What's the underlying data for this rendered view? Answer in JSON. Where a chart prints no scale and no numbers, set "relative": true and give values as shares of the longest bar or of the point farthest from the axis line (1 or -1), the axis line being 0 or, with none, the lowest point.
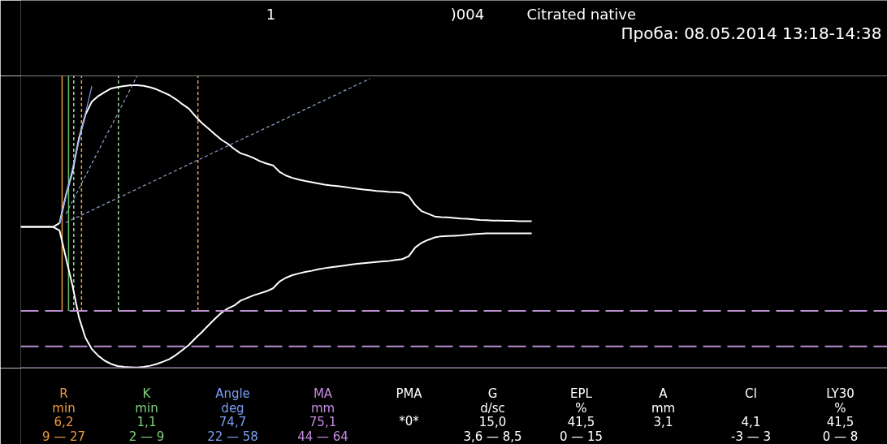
{
  "chart_data": {
    "type": "line",
    "relative": true,
    "line_style": "solid",
    "categories": [
      null,
      null,
      null,
      null,
      null,
      null,
      null,
      null,
      null,
      null,
      null,
      null,
      null,
      null,
      null,
      null,
      null,
      null,
      null,
      null,
      null,
      null,
      null,
      null,
      null,
      null,
      null,
      null,
      null,
      null,
      null,
      null,
      null,
      null,
      null,
      null,
      null,
      null,
      null,
      null,
      null,
      null,
      null,
      null,
      null,
      null,
      null,
      null,
      null,
      null,
      null,
      null,
      null,
      null,
      null,
      null,
      null,
      null,
      null,
      null,
      null,
      null,
      null,
      null,
      null,
      null,
      null,
      null,
      null,
      null,
      null,
      null,
      null,
      null,
      null,
      null,
      null,
      null,
      null,
      null,
      null,
      null,
      null,
      null,
      null,
      null,
      null,
      null,
      null,
      null,
      null,
      null,
      null,
      null,
      null,
      null,
      null,
      null,
      null,
      null,
      null,
      null,
      null,
      null,
      null,
      null,
      null,
      null,
      null,
      null,
      null,
      null,
      null,
      null,
      null,
      null,
      null,
      null,
      null,
      null,
      null,
      null,
      null,
      null,
      null,
      null,
      null,
      null,
      null,
      null,
      null,
      null,
      null,
      null,
      null
    ],
    "series": [
      {
        "color": "#ffffff",
        "values": [
          0.483,
          0.483,
          0.483,
          0.483,
          0.483,
          0.483,
          0.496,
          0.592,
          0.673,
          0.785,
          0.867,
          0.912,
          0.931,
          0.945,
          0.957,
          0.962,
          0.965,
          0.968,
          0.968,
          0.966,
          0.961,
          0.954,
          0.944,
          0.934,
          0.92,
          0.903,
          0.888,
          0.862,
          0.839,
          0.82,
          0.801,
          0.782,
          0.768,
          0.75,
          0.735,
          0.728,
          0.719,
          0.708,
          0.7,
          0.694,
          0.672,
          0.659,
          0.651,
          0.645,
          0.64,
          0.636,
          0.632,
          0.628,
          0.625,
          0.623,
          0.62,
          0.617,
          0.614,
          0.611,
          0.609,
          0.606,
          0.605,
          0.603,
          0.602,
          0.6,
          0.589,
          0.558,
          0.537,
          0.528,
          0.519,
          0.517,
          0.516,
          0.514,
          0.512,
          0.511,
          0.509,
          0.507,
          0.506,
          0.505,
          0.505,
          0.504,
          0.504,
          0.503,
          0.503,
          0.503,
          null,
          null,
          null,
          null,
          null,
          null,
          null,
          null,
          null,
          null,
          null,
          null,
          null,
          null,
          null,
          null,
          null,
          null,
          null,
          null,
          null,
          null,
          null,
          null,
          null,
          null,
          null,
          null,
          null,
          null,
          null,
          null,
          null,
          null,
          null,
          null,
          null,
          null,
          null,
          null,
          null,
          null,
          null,
          null,
          null,
          null,
          null,
          null,
          null,
          null,
          null,
          null,
          null,
          null,
          null
        ]
      },
      {
        "color": "#ffffff",
        "values": [
          0.483,
          0.483,
          0.483,
          0.483,
          0.483,
          0.483,
          0.471,
          0.376,
          0.283,
          0.174,
          0.104,
          0.065,
          0.042,
          0.025,
          0.014,
          0.007,
          0.004,
          0.003,
          0.002,
          0.004,
          0.008,
          0.014,
          0.022,
          0.031,
          0.045,
          0.062,
          0.079,
          0.102,
          0.123,
          0.146,
          0.168,
          0.189,
          0.204,
          0.214,
          0.231,
          0.24,
          0.249,
          0.256,
          0.263,
          0.273,
          0.296,
          0.309,
          0.318,
          0.324,
          0.329,
          0.333,
          0.338,
          0.342,
          0.345,
          0.348,
          0.351,
          0.354,
          0.357,
          0.359,
          0.361,
          0.363,
          0.365,
          0.367,
          0.37,
          0.373,
          0.383,
          0.413,
          0.429,
          0.439,
          0.447,
          0.451,
          0.452,
          0.453,
          0.454,
          0.456,
          0.458,
          0.46,
          0.461,
          0.461,
          0.461,
          0.461,
          0.461,
          0.461,
          0.461,
          0.461,
          null,
          null,
          null,
          null,
          null,
          null,
          null,
          null,
          null,
          null,
          null,
          null,
          null,
          null,
          null,
          null,
          null,
          null,
          null,
          null,
          null,
          null,
          null,
          null,
          null,
          null,
          null,
          null,
          null,
          null,
          null,
          null,
          null,
          null,
          null,
          null,
          null,
          null,
          null,
          null,
          null,
          null,
          null,
          null,
          null,
          null,
          null,
          null,
          null,
          null,
          null,
          null,
          null,
          null,
          null
        ]
      },
      {
        "type": "line",
        "color": "#7f9ff0",
        "values": [
          null,
          null,
          null,
          null,
          null,
          null,
          0.494,
          0.588,
          0.683,
          0.777,
          0.871,
          0.965,
          null,
          null,
          null,
          null,
          null,
          null,
          null,
          null,
          null,
          null,
          null,
          null,
          null,
          null,
          null,
          null,
          null,
          null,
          null,
          null,
          null,
          null,
          null,
          null,
          null,
          null,
          null,
          null,
          null,
          null,
          null,
          null,
          null,
          null,
          null,
          null,
          null,
          null,
          null,
          null,
          null,
          null,
          null,
          null,
          null,
          null,
          null,
          null,
          null,
          null,
          null,
          null,
          null,
          null,
          null,
          null,
          null,
          null,
          null,
          null,
          null,
          null,
          null,
          null,
          null,
          null,
          null,
          null,
          null,
          null,
          null,
          null,
          null,
          null,
          null,
          null,
          null,
          null,
          null,
          null,
          null,
          null,
          null,
          null,
          null,
          null,
          null,
          null,
          null,
          null,
          null,
          null,
          null,
          null,
          null,
          null,
          null,
          null,
          null,
          null,
          null,
          null,
          null,
          null,
          null,
          null,
          null,
          null,
          null,
          null,
          null,
          null,
          null,
          null,
          null,
          null,
          null,
          null,
          null,
          null,
          null,
          null,
          null
        ]
      },
      {
        "type": "line",
        "color": "#8fa3d0",
        "line_style": "dotted",
        "values": [
          null,
          null,
          null,
          null,
          null,
          null,
          null,
          0.528,
          0.571,
          0.614,
          0.657,
          0.7,
          0.743,
          0.786,
          0.828,
          0.871,
          0.914,
          0.957,
          1.0,
          null,
          null,
          null,
          null,
          null,
          null,
          null,
          null,
          null,
          null,
          null,
          null,
          null,
          null,
          null,
          null,
          null,
          null,
          null,
          null,
          null,
          null,
          null,
          null,
          null,
          null,
          null,
          null,
          null,
          null,
          null,
          null,
          null,
          null,
          null,
          null,
          null,
          null,
          null,
          null,
          null,
          null,
          null,
          null,
          null,
          null,
          null,
          null,
          null,
          null,
          null,
          null,
          null,
          null,
          null,
          null,
          null,
          null,
          null,
          null,
          null,
          null,
          null,
          null,
          null,
          null,
          null,
          null,
          null,
          null,
          null,
          null,
          null,
          null,
          null,
          null,
          null,
          null,
          null,
          null,
          null,
          null,
          null,
          null,
          null,
          null,
          null,
          null,
          null,
          null,
          null,
          null,
          null,
          null,
          null,
          null,
          null,
          null,
          null,
          null,
          null,
          null,
          null,
          null,
          null,
          null,
          null,
          null,
          null,
          null,
          null,
          null,
          null,
          null,
          null,
          null
        ]
      },
      {
        "type": "line",
        "color": "#8fa3d0",
        "line_style": "dotted",
        "values": [
          null,
          null,
          null,
          null,
          null,
          null,
          null,
          0.498,
          0.509,
          0.519,
          0.53,
          0.54,
          0.551,
          0.561,
          0.572,
          0.582,
          0.592,
          0.603,
          0.613,
          0.624,
          0.634,
          0.645,
          0.655,
          0.666,
          0.676,
          0.687,
          0.697,
          0.708,
          0.718,
          0.729,
          0.739,
          0.75,
          0.76,
          0.771,
          0.781,
          0.792,
          0.802,
          0.812,
          0.823,
          0.833,
          0.844,
          0.854,
          0.865,
          0.875,
          0.886,
          0.896,
          0.907,
          0.917,
          0.928,
          0.938,
          0.949,
          0.959,
          0.97,
          0.98,
          0.991,
          null,
          null,
          null,
          null,
          null,
          null,
          null,
          null,
          null,
          null,
          null,
          null,
          null,
          null,
          null,
          null,
          null,
          null,
          null,
          null,
          null,
          null,
          null,
          null,
          null,
          null,
          null,
          null,
          null,
          null,
          null,
          null,
          null,
          null,
          null,
          null,
          null,
          null,
          null,
          null,
          null,
          null,
          null,
          null,
          null,
          null,
          null,
          null,
          null,
          null,
          null,
          null,
          null,
          null,
          null,
          null,
          null,
          null,
          null,
          null,
          null,
          null,
          null,
          null,
          null,
          null,
          null,
          null,
          null,
          null,
          null,
          null,
          null,
          null,
          null,
          null,
          null,
          null,
          null,
          null
        ]
      }
    ],
    "ref_lines": [
      {
        "axis": "y",
        "value": 0.196,
        "color": "#b98fcf",
        "line_style": "dashed"
      },
      {
        "axis": "y",
        "value": 0.074,
        "color": "#b98fcf",
        "line_style": "dashed"
      }
    ],
    "annotations": [
      "1",
      ")004",
      "Citrated native",
      "Проба: 08.05.2014 13:18-14:38",
      "R\nmin\n6,2\n9 — 27",
      "K\nmin\n1,1\n2 — 9",
      "Angle\ndeg\n74,7\n22 — 58",
      "MA\nmm\n75,1\n44 — 64",
      "PMA\n\n*0*\n",
      "G\nd/sc\n15,0\n3,6 — 8,5",
      "EPL\n%\n41,5\n0 — 15",
      "A\nmm\n3,1\n",
      "CI\n\n4,1\n-3 — 3",
      "LY30\n%\n41,5\n0 — 8"
    ]
  }
}
